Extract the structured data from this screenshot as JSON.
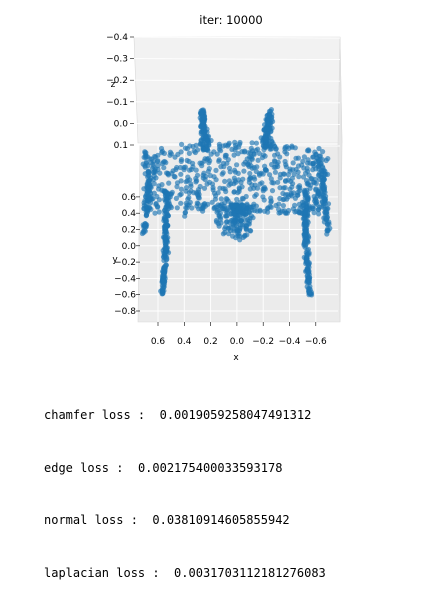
{
  "chart_data": {
    "type": "scatter",
    "projection": "3d",
    "title": "iter: 10000",
    "xlabel": "x",
    "ylabel": "y",
    "zlabel": "z",
    "x_ticks": [
      "0.6",
      "0.4",
      "0.2",
      "0.0",
      "−0.2",
      "−0.4",
      "−0.6"
    ],
    "y_ticks": [
      "−0.8",
      "−0.6",
      "−0.4",
      "−0.2",
      "0.0",
      "0.2",
      "0.4",
      "0.6"
    ],
    "z_ticks": [
      "−0.4",
      "−0.3",
      "−0.2",
      "−0.1",
      "0.0",
      "0.1"
    ],
    "xlim": [
      0.7,
      -0.7
    ],
    "ylim": [
      -0.8,
      0.65
    ],
    "zlim": [
      -0.4,
      0.1
    ],
    "marker_color": "#1f77b4",
    "pane_color": "#f2f2f2",
    "grid": true,
    "series": [
      {
        "values": "dense point cloud of a mesh surface (symmetric shape with two upper ears and two long lower legs)"
      }
    ]
  },
  "losses": [
    {
      "label": "chamfer loss :",
      "value": "0.0019059258047491312"
    },
    {
      "label": "edge loss :",
      "value": "0.002175400033593178"
    },
    {
      "label": "normal loss :",
      "value": "0.03810914605855942"
    },
    {
      "label": "laplacian loss :",
      "value": "0.0031703112181276083"
    }
  ]
}
